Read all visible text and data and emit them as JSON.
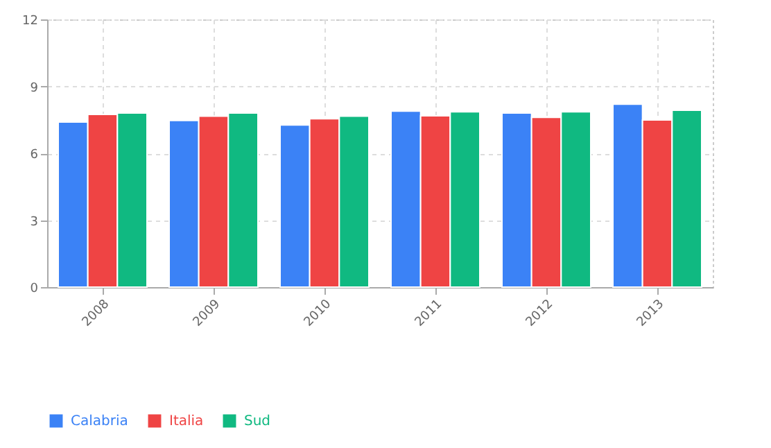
{
  "chart_data": {
    "type": "bar",
    "categories": [
      "2008",
      "2009",
      "2010",
      "2011",
      "2012",
      "2013"
    ],
    "series": [
      {
        "name": "Calabria",
        "color": "#3b82f6",
        "values": [
          7.4,
          7.47,
          7.27,
          7.89,
          7.8,
          8.2
        ]
      },
      {
        "name": "Italia",
        "color": "#ef4444",
        "values": [
          7.74,
          7.66,
          7.55,
          7.68,
          7.61,
          7.49
        ]
      },
      {
        "name": "Sud",
        "color": "#10b981",
        "values": [
          7.8,
          7.8,
          7.66,
          7.86,
          7.86,
          7.93
        ]
      }
    ],
    "ylim": [
      0,
      12
    ],
    "yticks": [
      0,
      3,
      6,
      9,
      12
    ],
    "grid": true,
    "legend": "bottom"
  }
}
